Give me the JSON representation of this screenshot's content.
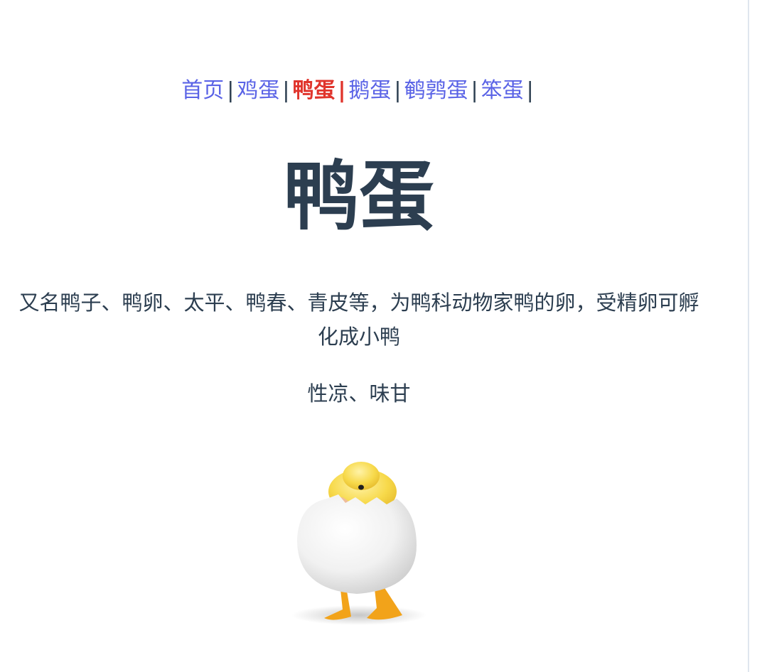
{
  "nav": {
    "items": [
      {
        "label": "首页"
      },
      {
        "label": "鸡蛋"
      },
      {
        "label": "鸭蛋",
        "active": true
      },
      {
        "label": "鹅蛋"
      },
      {
        "label": "鹌鹑蛋"
      },
      {
        "label": "笨蛋"
      }
    ],
    "separator": "|"
  },
  "main": {
    "title": "鸭蛋",
    "description": "又名鸭子、鸭卵、太平、鸭春、青皮等，为鸭科动物家鸭的卵，受精卵可孵化成小鸭",
    "properties": "性凉、味甘",
    "image_subject": "duckling-hatching-from-egg-image"
  },
  "colors": {
    "link": "#5a63e6",
    "active_link": "#e0342c",
    "text": "#2c3e50"
  }
}
